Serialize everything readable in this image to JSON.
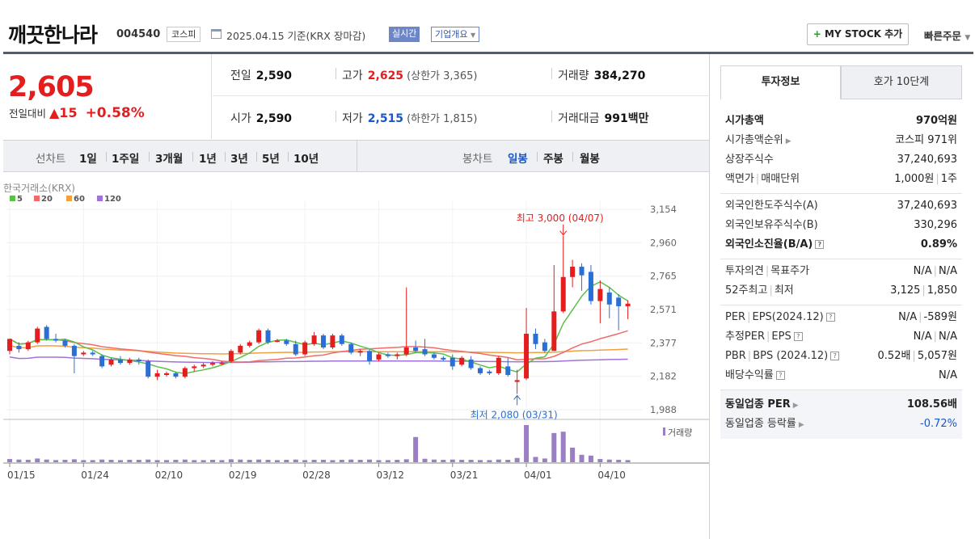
{
  "header": {
    "name": "깨끗한나라",
    "code": "004540",
    "market": "코스피",
    "date": "2025.04.15 기준(KRX 장마감)",
    "realtime": "실시간",
    "overview": "기업개요",
    "mystock": "MY STOCK 추가",
    "quick": "빠른주문"
  },
  "price": {
    "current": "2,605",
    "change_label": "전일대비",
    "change": "▲15",
    "change_pct": "+0.58%"
  },
  "stats": {
    "prev_label": "전일",
    "prev": "2,590",
    "high_label": "고가",
    "high": "2,625",
    "upper_label": "(상한가 3,365)",
    "vol_label": "거래량",
    "vol": "384,270",
    "open_label": "시가",
    "open": "2,590",
    "low_label": "저가",
    "low": "2,515",
    "lower_label": "(하한가 1,815)",
    "amount_label": "거래대금",
    "amount": "991",
    "amount_unit": "백만"
  },
  "periods": {
    "line_label": "선차트",
    "line_items": [
      "1일",
      "1주일",
      "3개월",
      "1년",
      "3년",
      "5년",
      "10년"
    ],
    "candle_label": "봉차트",
    "candle_items": [
      "일봉",
      "주봉",
      "월봉"
    ],
    "selected": "일봉"
  },
  "chart_data": {
    "type": "candlestick",
    "source": "한국거래소(KRX)",
    "legend": [
      "5",
      "20",
      "60",
      "120"
    ],
    "ma_colors": {
      "5": "#5cbf4a",
      "20": "#f06b6b",
      "60": "#f0a040",
      "120": "#9f73d8"
    },
    "y_ticks": [
      3154,
      2960,
      2765,
      2571,
      2377,
      2182,
      1988
    ],
    "ylim": [
      1988,
      3154
    ],
    "x_labels": [
      "01/15",
      "01/24",
      "02/10",
      "02/19",
      "02/28",
      "03/12",
      "03/21",
      "04/01",
      "04/10"
    ],
    "x_label_index": [
      0,
      8,
      16,
      24,
      32,
      40,
      48,
      56,
      64
    ],
    "max_annotation": "최고 3,000 (04/07)",
    "min_annotation": "최저 2,080 (03/31)",
    "volume_label": "거래량",
    "candles": [
      [
        2330,
        2400,
        2310,
        2400
      ],
      [
        2360,
        2340,
        2320,
        2380
      ],
      [
        2340,
        2380,
        2330,
        2390
      ],
      [
        2380,
        2460,
        2370,
        2470
      ],
      [
        2470,
        2400,
        2390,
        2480
      ],
      [
        2400,
        2390,
        2380,
        2430
      ],
      [
        2390,
        2360,
        2350,
        2400
      ],
      [
        2360,
        2300,
        2200,
        2370
      ],
      [
        2310,
        2320,
        2300,
        2330
      ],
      [
        2320,
        2310,
        2300,
        2330
      ],
      [
        2300,
        2240,
        2230,
        2310
      ],
      [
        2250,
        2280,
        2240,
        2290
      ],
      [
        2280,
        2260,
        2250,
        2300
      ],
      [
        2260,
        2280,
        2250,
        2290
      ],
      [
        2280,
        2270,
        2250,
        2290
      ],
      [
        2270,
        2180,
        2170,
        2280
      ],
      [
        2180,
        2200,
        2160,
        2220
      ],
      [
        2190,
        2200,
        2180,
        2210
      ],
      [
        2200,
        2180,
        2170,
        2210
      ],
      [
        2180,
        2230,
        2170,
        2240
      ],
      [
        2230,
        2240,
        2210,
        2250
      ],
      [
        2240,
        2250,
        2230,
        2260
      ],
      [
        2250,
        2260,
        2240,
        2270
      ],
      [
        2260,
        2260,
        2250,
        2270
      ],
      [
        2270,
        2330,
        2260,
        2340
      ],
      [
        2320,
        2360,
        2310,
        2370
      ],
      [
        2360,
        2380,
        2350,
        2390
      ],
      [
        2380,
        2450,
        2370,
        2460
      ],
      [
        2450,
        2380,
        2370,
        2460
      ],
      [
        2390,
        2390,
        2380,
        2400
      ],
      [
        2390,
        2370,
        2360,
        2400
      ],
      [
        2370,
        2310,
        2300,
        2390
      ],
      [
        2310,
        2380,
        2300,
        2390
      ],
      [
        2370,
        2420,
        2360,
        2440
      ],
      [
        2420,
        2350,
        2340,
        2430
      ],
      [
        2350,
        2420,
        2340,
        2430
      ],
      [
        2420,
        2370,
        2360,
        2430
      ],
      [
        2370,
        2320,
        2310,
        2380
      ],
      [
        2320,
        2330,
        2300,
        2340
      ],
      [
        2330,
        2270,
        2250,
        2340
      ],
      [
        2280,
        2310,
        2270,
        2320
      ],
      [
        2310,
        2300,
        2290,
        2320
      ],
      [
        2300,
        2310,
        2280,
        2320
      ],
      [
        2310,
        2350,
        2300,
        2700
      ],
      [
        2350,
        2330,
        2320,
        2390
      ],
      [
        2340,
        2310,
        2300,
        2400
      ],
      [
        2310,
        2290,
        2280,
        2320
      ],
      [
        2290,
        2280,
        2270,
        2300
      ],
      [
        2290,
        2240,
        2220,
        2310
      ],
      [
        2250,
        2290,
        2240,
        2300
      ],
      [
        2280,
        2230,
        2220,
        2300
      ],
      [
        2230,
        2200,
        2190,
        2240
      ],
      [
        2210,
        2200,
        2190,
        2220
      ],
      [
        2200,
        2290,
        2190,
        2300
      ],
      [
        2240,
        2190,
        2180,
        2290
      ],
      [
        2150,
        2160,
        2080,
        2220
      ],
      [
        2170,
        2430,
        2160,
        2580
      ],
      [
        2430,
        2370,
        2340,
        2460
      ],
      [
        2380,
        2330,
        2320,
        2400
      ],
      [
        2330,
        2560,
        2330,
        2830
      ],
      [
        2560,
        2760,
        2550,
        3000
      ],
      [
        2760,
        2820,
        2700,
        2860
      ],
      [
        2820,
        2770,
        2680,
        2840
      ],
      [
        2790,
        2620,
        2600,
        2830
      ],
      [
        2620,
        2690,
        2490,
        2740
      ],
      [
        2670,
        2600,
        2520,
        2700
      ],
      [
        2640,
        2590,
        2450,
        2660
      ],
      [
        2590,
        2605,
        2515,
        2625
      ]
    ],
    "volumes": [
      12,
      10,
      9,
      14,
      10,
      8,
      9,
      11,
      8,
      8,
      10,
      9,
      8,
      9,
      9,
      10,
      8,
      8,
      9,
      10,
      8,
      8,
      9,
      8,
      11,
      10,
      9,
      10,
      9,
      8,
      9,
      10,
      8,
      9,
      9,
      8,
      9,
      10,
      9,
      10,
      8,
      8,
      9,
      11,
      95,
      13,
      10,
      9,
      10,
      9,
      9,
      8,
      8,
      10,
      9,
      16,
      140,
      20,
      14,
      110,
      115,
      55,
      28,
      25,
      12,
      10,
      9,
      8
    ]
  },
  "invest": {
    "tab1": "투자정보",
    "tab2": "호가 10단계",
    "rows": {
      "mcap_k": "시가총액",
      "mcap_v": "970억원",
      "rank_k": "시가총액순위",
      "rank_v": "코스피 971위",
      "shares_k": "상장주식수",
      "shares_v": "37,240,693",
      "par_k1": "액면가",
      "par_k2": "매매단위",
      "par_v1": "1,000원",
      "par_v2": "1주",
      "frlim_k": "외국인한도주식수(A)",
      "frlim_v": "37,240,693",
      "frhold_k": "외국인보유주식수(B)",
      "frhold_v": "330,296",
      "frrate_k": "외국인소진율(B/A)",
      "frrate_v": "0.89%",
      "op_k1": "투자의견",
      "op_k2": "목표주가",
      "op_v1": "N/A",
      "op_v2": "N/A",
      "w52_k1": "52주최고",
      "w52_k2": "최저",
      "w52_v1": "3,125",
      "w52_v2": "1,850",
      "per_k1": "PER",
      "per_k2": "EPS(2024.12)",
      "per_v1": "N/A",
      "per_v2": "-589원",
      "eper_k1": "추정PER",
      "eper_k2": "EPS",
      "eper_v1": "N/A",
      "eper_v2": "N/A",
      "pbr_k1": "PBR",
      "pbr_k2": "BPS (2024.12)",
      "pbr_v1": "0.52배",
      "pbr_v2": "5,057원",
      "div_k": "배당수익률",
      "div_v": "N/A",
      "sper_k": "동일업종 PER",
      "sper_v": "108.56배",
      "srate_k": "동일업종 등락률",
      "srate_v": "-0.72%"
    }
  }
}
